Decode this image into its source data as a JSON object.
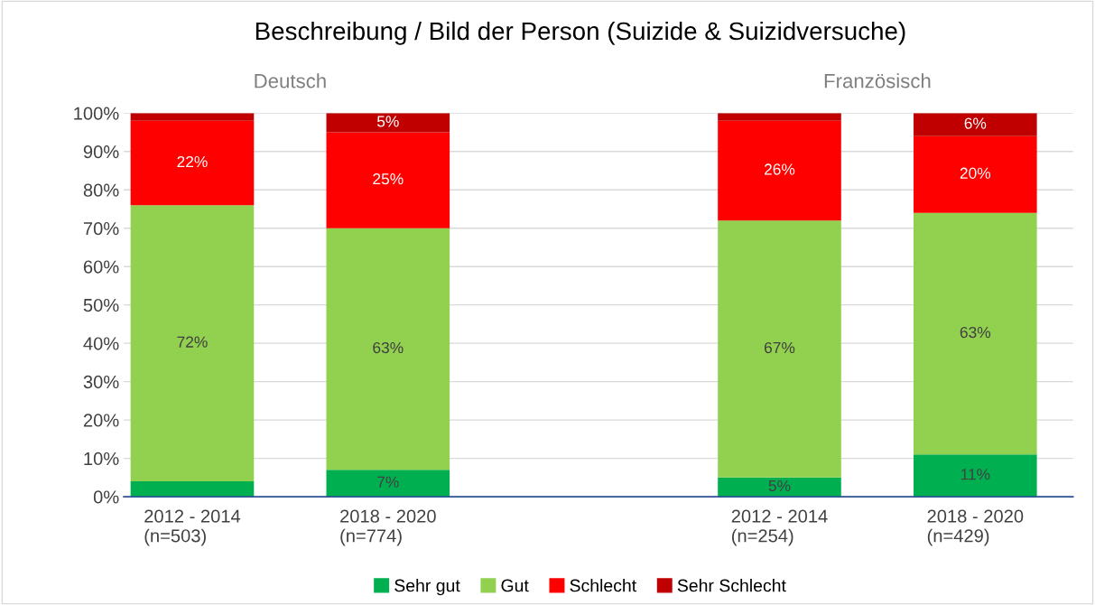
{
  "chart_data": {
    "type": "bar",
    "stacked": true,
    "title": "Beschreibung / Bild der Person (Suizide & Suizidversuche)",
    "categories": [
      "2012 - 2014\n(n=503)",
      "2018 - 2020\n(n=774)",
      null,
      "2012 - 2014\n(n=254)",
      "2018 - 2020\n(n=429)"
    ],
    "series": [
      {
        "name": "Sehr gut",
        "color": "#00b050",
        "values": [
          4,
          7,
          null,
          5,
          11
        ],
        "value_labels": [
          null,
          "7%",
          null,
          "5%",
          "11%"
        ]
      },
      {
        "name": "Gut",
        "color": "#92d050",
        "values": [
          72,
          63,
          null,
          67,
          63
        ],
        "value_labels": [
          "72%",
          "63%",
          null,
          "67%",
          "63%"
        ]
      },
      {
        "name": "Schlecht",
        "color": "#ff0000",
        "values": [
          22,
          25,
          null,
          26,
          20
        ],
        "value_labels": [
          "22%",
          "25%",
          null,
          "26%",
          "20%"
        ]
      },
      {
        "name": "Sehr Schlecht",
        "color": "#c00000",
        "values": [
          2,
          5,
          null,
          2,
          6
        ],
        "value_labels": [
          null,
          "5%",
          null,
          null,
          "6%"
        ]
      }
    ],
    "annotations": [
      "Deutsch",
      "Französisch"
    ],
    "ylim": [
      0,
      100
    ],
    "yticks": [
      {
        "value": 0,
        "label": "0%"
      },
      {
        "value": 10,
        "label": "10%"
      },
      {
        "value": 20,
        "label": "20%"
      },
      {
        "value": 30,
        "label": "30%"
      },
      {
        "value": 40,
        "label": "40%"
      },
      {
        "value": 50,
        "label": "50%"
      },
      {
        "value": 60,
        "label": "60%"
      },
      {
        "value": 70,
        "label": "70%"
      },
      {
        "value": 80,
        "label": "80%"
      },
      {
        "value": 90,
        "label": "90%"
      },
      {
        "value": 100,
        "label": "100%"
      }
    ],
    "grid": "y",
    "legend": "bottom"
  }
}
